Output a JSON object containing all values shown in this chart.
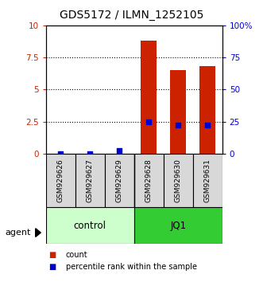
{
  "title": "GDS5172 / ILMN_1252105",
  "samples": [
    "GSM929626",
    "GSM929627",
    "GSM929629",
    "GSM929628",
    "GSM929630",
    "GSM929631"
  ],
  "counts": [
    0.0,
    0.0,
    0.0,
    8.8,
    6.5,
    6.8
  ],
  "percentiles": [
    0.0,
    0.0,
    2.5,
    25.0,
    22.0,
    22.0
  ],
  "groups": [
    {
      "label": "control",
      "start": 0,
      "end": 3,
      "color": "#ccffcc"
    },
    {
      "label": "JQ1",
      "start": 3,
      "end": 6,
      "color": "#33cc33"
    }
  ],
  "ylim_left": [
    0,
    10
  ],
  "ylim_right": [
    0,
    100
  ],
  "yticks_left": [
    0,
    2.5,
    5,
    7.5,
    10
  ],
  "yticks_right": [
    0,
    25,
    50,
    75,
    100
  ],
  "ytick_labels_left": [
    "0",
    "2.5",
    "5",
    "7.5",
    "10"
  ],
  "ytick_labels_right": [
    "0",
    "25",
    "50",
    "75",
    "100%"
  ],
  "bar_color": "#cc2200",
  "dot_color": "#0000cc",
  "agent_label": "agent",
  "title_fontsize": 10,
  "bg_color": "#d8d8d8",
  "legend_count_label": "count",
  "legend_pct_label": "percentile rank within the sample"
}
